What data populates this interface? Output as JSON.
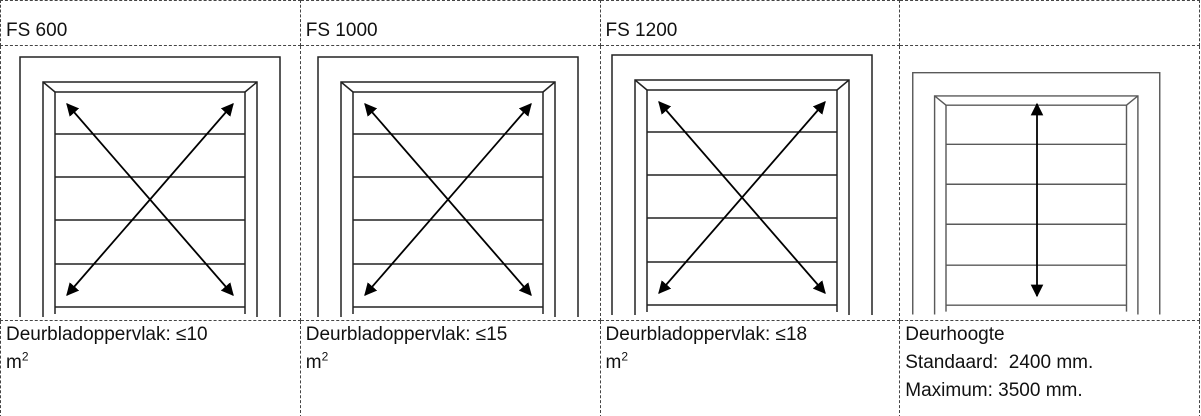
{
  "table": {
    "header": [
      "FS 600",
      "FS 1000",
      "FS 1200"
    ],
    "captions": [
      {
        "text": "Deurbladoppervlak: ≤10",
        "unit": "m",
        "sup": "2"
      },
      {
        "text": "Deurbladoppervlak: ≤15",
        "unit": "m",
        "sup": "2"
      },
      {
        "text": "Deurbladoppervlak: ≤18",
        "unit": "m",
        "sup": "2"
      }
    ],
    "height_info": [
      "Deurhoogte",
      "Standaard:  2400 mm.",
      "Maximum: 3500 mm."
    ]
  }
}
